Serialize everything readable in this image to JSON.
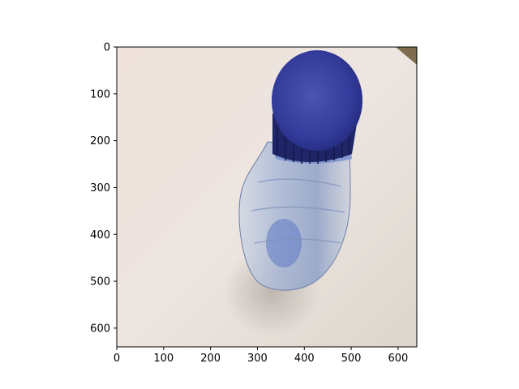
{
  "figure": {
    "image_subject": "plastic-water-bottle-with-blue-cap",
    "colors": {
      "background": "#ece4df",
      "cap": "#2e3696",
      "cap_dark": "#1c2270",
      "bottle": "#9fb2d6",
      "axis": "#000000"
    },
    "x_axis": {
      "ticks": [
        "0",
        "100",
        "200",
        "300",
        "400",
        "500",
        "600"
      ]
    },
    "y_axis": {
      "ticks": [
        "0",
        "100",
        "200",
        "300",
        "400",
        "500",
        "600"
      ]
    }
  }
}
